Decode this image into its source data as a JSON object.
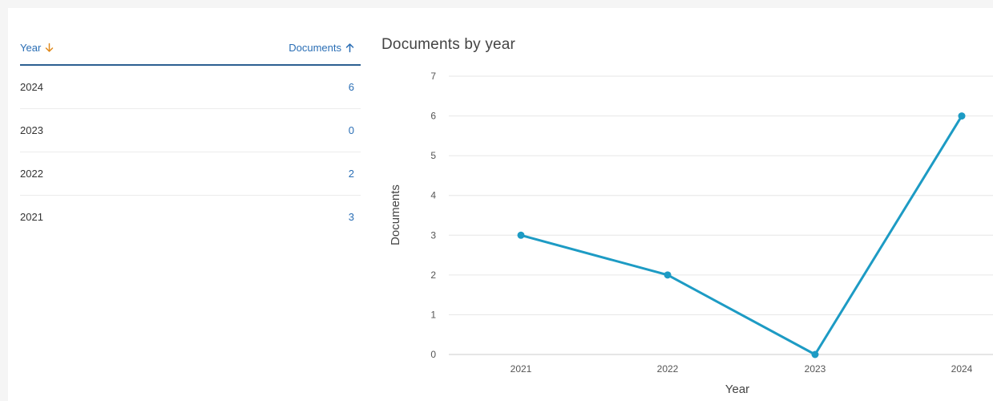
{
  "table": {
    "headers": {
      "year": "Year",
      "documents": "Documents"
    },
    "sort_icons": {
      "year": "arrow-down-icon",
      "documents": "arrow-up-icon"
    },
    "rows": [
      {
        "year": "2024",
        "documents": "6"
      },
      {
        "year": "2023",
        "documents": "0"
      },
      {
        "year": "2022",
        "documents": "2"
      },
      {
        "year": "2021",
        "documents": "3"
      }
    ],
    "colors": {
      "header_text": "#2a6eb5",
      "year_sort_arrow": "#e08a1e",
      "docs_sort_arrow": "#2a6eb5",
      "header_rule": "#2c5f91"
    }
  },
  "chart_data": {
    "type": "line",
    "title": "Documents by year",
    "xlabel": "Year",
    "ylabel": "Documents",
    "categories": [
      "2021",
      "2022",
      "2023",
      "2024"
    ],
    "values": [
      3,
      2,
      0,
      6
    ],
    "ylim": [
      0,
      7
    ],
    "yticks": [
      0,
      1,
      2,
      3,
      4,
      5,
      6,
      7
    ],
    "grid": true,
    "line_color": "#1d9bc4"
  }
}
